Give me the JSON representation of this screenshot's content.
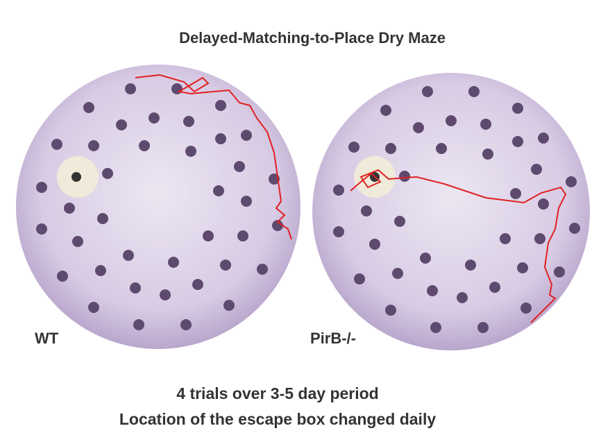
{
  "title": "Delayed-Matching-to-Place Dry Maze",
  "panels": [
    {
      "label": "WT"
    },
    {
      "label": "PirB-/-"
    }
  ],
  "caption": {
    "line1": "4 trials over 3-5 day period",
    "line2": "Location of the escape box changed daily"
  }
}
